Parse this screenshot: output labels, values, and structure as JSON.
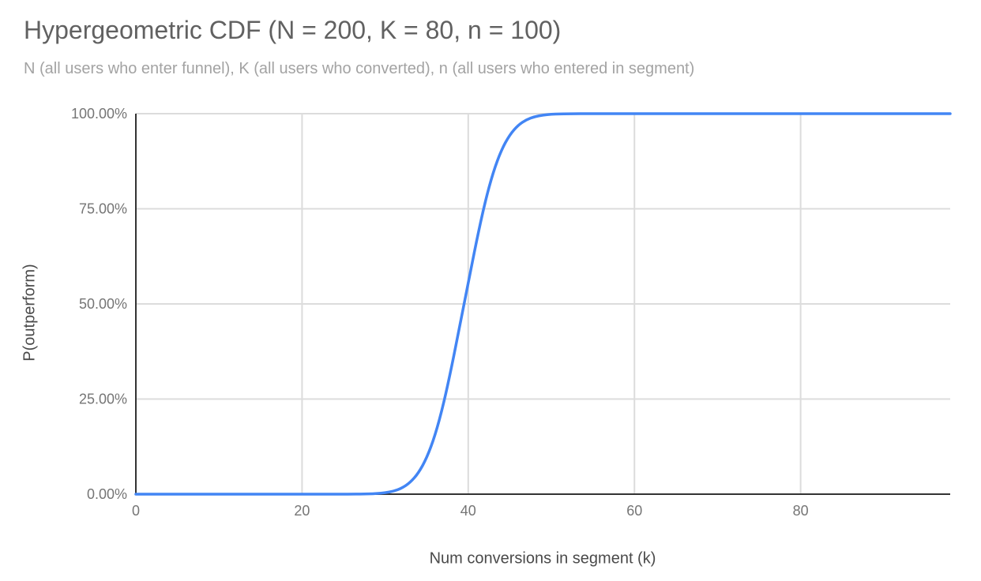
{
  "theme": {
    "background": "#ffffff",
    "title_color": "#616161",
    "subtitle_color": "#a3a3a3",
    "tick_label_color": "#757575",
    "axis_title_color": "#4a4a4a",
    "axis_line_color": "#333333",
    "gridline_color": "#dcdcdc",
    "line_color": "#4285f4"
  },
  "chart_data": {
    "type": "line",
    "title": "Hypergeometric CDF (N = 200, K = 80, n = 100)",
    "subtitle": "N (all users who enter funnel), K (all users who converted), n (all users who entered in segment)",
    "xlabel": "Num conversions in segment (k)",
    "ylabel": "P(outperform)",
    "xlim": [
      0,
      98
    ],
    "ylim": [
      0,
      1
    ],
    "grid": true,
    "legend": "none",
    "x_ticks": {
      "values": [
        0,
        20,
        40,
        60,
        80
      ],
      "labels": [
        "0",
        "20",
        "40",
        "60",
        "80"
      ]
    },
    "y_ticks": {
      "values": [
        0,
        0.25,
        0.5,
        0.75,
        1
      ],
      "labels": [
        "0.00%",
        "25.00%",
        "50.00%",
        "75.00%",
        "100.00%"
      ]
    },
    "distribution": {
      "name": "hypergeometric",
      "N": 200,
      "K": 80,
      "n": 100
    },
    "series": [
      {
        "name": "P(outperform)",
        "color": "#4285f4",
        "points": [
          [
            0,
            0
          ],
          [
            5,
            0
          ],
          [
            10,
            0
          ],
          [
            15,
            0
          ],
          [
            20,
            0
          ],
          [
            22,
            0
          ],
          [
            24,
            2e-05
          ],
          [
            25,
            4e-05
          ],
          [
            26,
            0.0001
          ],
          [
            27,
            0.0003
          ],
          [
            28,
            0.0007
          ],
          [
            29,
            0.0016
          ],
          [
            30,
            0.0036
          ],
          [
            31,
            0.0077
          ],
          [
            32,
            0.0157
          ],
          [
            33,
            0.0303
          ],
          [
            34,
            0.0552
          ],
          [
            35,
            0.0948
          ],
          [
            36,
            0.1535
          ],
          [
            37,
            0.2342
          ],
          [
            38,
            0.3341
          ],
          [
            39,
            0.4451
          ],
          [
            40,
            0.5549
          ],
          [
            41,
            0.6659
          ],
          [
            42,
            0.7658
          ],
          [
            43,
            0.8465
          ],
          [
            44,
            0.9052
          ],
          [
            45,
            0.9448
          ],
          [
            46,
            0.9697
          ],
          [
            47,
            0.9843
          ],
          [
            48,
            0.9923
          ],
          [
            49,
            0.9964
          ],
          [
            50,
            0.9984
          ],
          [
            51,
            0.9993
          ],
          [
            52,
            0.9997
          ],
          [
            53,
            0.9999
          ],
          [
            54,
            1
          ],
          [
            55,
            1
          ],
          [
            60,
            1
          ],
          [
            65,
            1
          ],
          [
            70,
            1
          ],
          [
            75,
            1
          ],
          [
            80,
            1
          ],
          [
            85,
            1
          ],
          [
            90,
            1
          ],
          [
            98,
            1
          ]
        ]
      }
    ]
  }
}
